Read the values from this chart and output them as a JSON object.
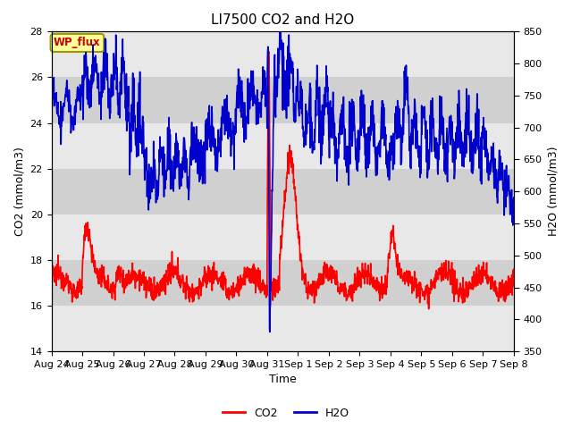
{
  "title": "LI7500 CO2 and H2O",
  "xlabel": "Time",
  "ylabel_left": "CO2 (mmol/m3)",
  "ylabel_right": "H2O (mmol/m3)",
  "ylim_left": [
    14,
    28
  ],
  "ylim_right": [
    350,
    850
  ],
  "yticks_left": [
    14,
    16,
    18,
    20,
    22,
    24,
    26,
    28
  ],
  "yticks_right": [
    350,
    400,
    450,
    500,
    550,
    600,
    650,
    700,
    750,
    800,
    850
  ],
  "xtick_labels": [
    "Aug 24",
    "Aug 25",
    "Aug 26",
    "Aug 27",
    "Aug 28",
    "Aug 29",
    "Aug 30",
    "Aug 31",
    "Sep 1",
    "Sep 2",
    "Sep 3",
    "Sep 4",
    "Sep 5",
    "Sep 6",
    "Sep 7",
    "Sep 8"
  ],
  "co2_color": "#FF0000",
  "h2o_color": "#0000CC",
  "background_color": "#FFFFFF",
  "annotation_label": "WP_flux",
  "annotation_color": "#CC0000",
  "annotation_bg": "#FFFF99",
  "annotation_border": "#999900",
  "legend_co2": "CO2",
  "legend_h2o": "H2O",
  "title_fontsize": 11,
  "axis_fontsize": 9,
  "tick_fontsize": 8,
  "linewidth": 1.2
}
